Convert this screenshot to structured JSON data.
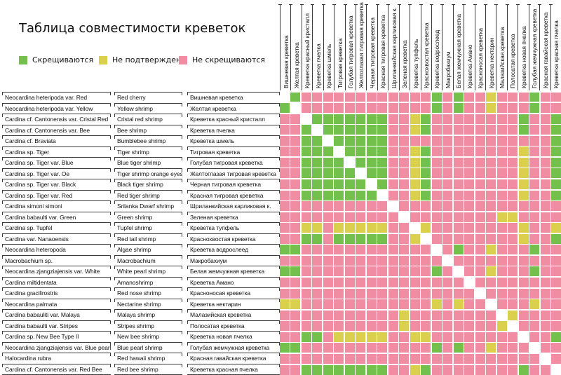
{
  "title": "Таблица совместимости креветок",
  "legend": {
    "items": [
      {
        "key": "G",
        "label": "Скрещиваются"
      },
      {
        "key": "Y",
        "label": "Не подтверждено"
      },
      {
        "key": "P",
        "label": "Не скрещиваются"
      }
    ]
  },
  "colors": {
    "G": "#74c04c",
    "Y": "#dbd04e",
    "P": "#f08da2",
    "W": "#ffffff",
    "line": "#3c3c3c"
  },
  "chart_data": {
    "type": "heatmap",
    "title": "Таблица совместимости креветок",
    "legend_position": "top-left",
    "cell_codes": {
      "G": "Скрещиваются",
      "Y": "Не подтверждено",
      "P": "Не скрещиваются",
      "W": "диагональ (тот же вид)"
    },
    "row_labels": [
      {
        "latin": "Neocardina heteripoda var. Red",
        "english": "Red cherry",
        "russian": "Вишневая креветка"
      },
      {
        "latin": "Neocardina heteripoda var. Yellow",
        "english": "Yellow shrimp",
        "russian": "Желтая креветка"
      },
      {
        "latin": "Cardina cf. Cantonensis var. Cristal Red",
        "english": "Cristal red shrimp",
        "russian": "Креветка красный кристалл"
      },
      {
        "latin": "Cardina cf. Cantonensis var. Bee",
        "english": "Bee shrimp",
        "russian": "Креветка пчелка"
      },
      {
        "latin": "Cardina cf. Braviata",
        "english": "Bumblebee shrimp",
        "russian": "Креветка шмель"
      },
      {
        "latin": "Cardina sp. Tiger",
        "english": "Tiger shrimp",
        "russian": "Тигровая креветка"
      },
      {
        "latin": "Cardina sp. Tiger var. Blue",
        "english": "Blue tiger shrimp",
        "russian": "Голубая тигровая креветка"
      },
      {
        "latin": "Cardina sp. Tiger var. Oe",
        "english": "Tiger shrimp orange eyes",
        "russian": "Желтоглазая тигровая креветка"
      },
      {
        "latin": "Cardina sp. Tiger var. Black",
        "english": "Black tiger shrimp",
        "russian": "Черная тигровая креветка"
      },
      {
        "latin": "Cardina sp. Tiger var. Red",
        "english": "Red tiger shrimp",
        "russian": "Красная тигровая креветка"
      },
      {
        "latin": "Cardina simoni simoni",
        "english": "Srilanka Dwarf shrimp",
        "russian": "Шриланкийская карликовая к."
      },
      {
        "latin": "Cardina babaulti var. Green",
        "english": "Green shrimp",
        "russian": "Зеленая креветка"
      },
      {
        "latin": "Cardina sp. Tupfel",
        "english": "Tupfel shrimp",
        "russian": "Креветка тупфель"
      },
      {
        "latin": "Cardina var. Nanaoensis",
        "english": "Red tail shrimp",
        "russian": "Краснохвостая креветка"
      },
      {
        "latin": "Neocardina heteropoda",
        "english": "Algae shrimp",
        "russian": "Креветка водрослеед"
      },
      {
        "latin": "Macrobachium sp.",
        "english": "Macrobachium",
        "russian": "Макробахиум"
      },
      {
        "latin": "Neocardina zjangziajensis var. White",
        "english": "White pearl shrimp",
        "russian": "Белая жемчужная креветка"
      },
      {
        "latin": "Cardina miltidentata",
        "english": "Amanoshrimp",
        "russian": "Креветка Амано"
      },
      {
        "latin": "Cardina gracilirostris",
        "english": "Red nose shrimp",
        "russian": "Красноносая креветка"
      },
      {
        "latin": "Neocardina palmata",
        "english": "Nectarine shrimp",
        "russian": "Креветка нектарин"
      },
      {
        "latin": "Cardina babauliti var. Malaya",
        "english": "Malaya shrimp",
        "russian": "Малазийская креветка"
      },
      {
        "latin": "Cardina babaulti var. Stripes",
        "english": "Stripes shrimp",
        "russian": "Полосатая креветка"
      },
      {
        "latin": "Cardina sp. New Bee Type II",
        "english": "New bee shrimp",
        "russian": "Креветка новая пчелка"
      },
      {
        "latin": "Neocardina zjangziajensis var. Blue pearl",
        "english": "Blue pearl shrimp",
        "russian": "Голубая жемчужная креветка"
      },
      {
        "latin": "Halocardina rubra",
        "english": "Red hawaii shrimp",
        "russian": "Красная гавайская креветка"
      },
      {
        "latin": "Cardina cf. Cantonensis var. Red Bee",
        "english": "Red bee shrimp",
        "russian": "Креветка красная пчелка"
      }
    ],
    "col_labels": [
      "Вишневая креветка",
      "Желтая креветка",
      "Креветка красный кристалл",
      "Креветка пчелка",
      "Креветка шмель",
      "Тигровая креветка",
      "Голубая тигровая креветка",
      "Желтоглазая тигровая креветка",
      "Черная тигровая креветка",
      "Красная тигровая креветка",
      "Шриланкийская карликовая к.",
      "Зеленая креветка",
      "Креветка тупфель",
      "Краснохвостая креветка",
      "Креветка водрослеед",
      "Макробахиум",
      "Белая жемчужная креветка",
      "Креветка Амано",
      "Красноносая креветка",
      "Креветка нектарин",
      "Малазийская креветка",
      "Полосатая креветка",
      "Креветка новая пчелка",
      "Голубая жемчужная креветка",
      "Красная гавайская креветка",
      "Креветка красная пчелка"
    ],
    "matrix": [
      "WGPPPPPPPPPPPPGPGPPYPPPGPP",
      "GWPPPPPPPPPPPPGPGPPYPPPGPP",
      "PPWGGGGGGGPPYGPPPPPPPPGPPG",
      "PPGWGGGGGGPPYGPPPPPPPPGPPG",
      "PPGGWGGGGGPPPPPPPPPPPPPPPG",
      "PPGGGWGGGGPPYGPPPPPPPPYPPG",
      "PPGGGGWGGGPPYGPPPPPPPPYPPG",
      "PPGGGGGWGGPPYGPPPPPPPPYPPG",
      "PPGGGGGGWGPPYGPPPPPPPPYPPG",
      "PPGGGGGGGWPPYGPPPPPPPPYPPG",
      "PPPPPPPPPPWPPPPPPPPPPPPPPP",
      "PPPPPPPPPPPWPPPPPPPPYYPPPP",
      "PPYYPYYYYYPPWYPPPPPPPPYPPY",
      "PPGGPGGGGGPPYWPPPPPPPPYPPG",
      "GGPPPPPPPPPPPPWPGPPYPPPGPP",
      "PPPPPPPPPPPPPPPWPPPPPPPPPP",
      "GGPPPPPPPPPPPPGPWPPYPPPGPP",
      "PPPPPPPPPPPPPPPPPWPPPPPPPP",
      "PPPPPPPPPPPPPPPPPPWPPPPPPP",
      "YYPPPPPPPPPPPPYPYPPWPPPYPP",
      "PPPPPPPPPPPYPPPPPPPPWYPPPP",
      "PPPPPPPPPPPYPPPPPPPPYWPPPP",
      "PPGGPYYYYYPPYYPPPPPPPPWPPG",
      "GGPPPPPPPPPPPPGPGPPYPPPWPP",
      "PPPPPPPPPPPPPPPPPPPPPPPPWP",
      "PPGGGGGGGGPPYGPPPPPPPPGPPW"
    ]
  }
}
